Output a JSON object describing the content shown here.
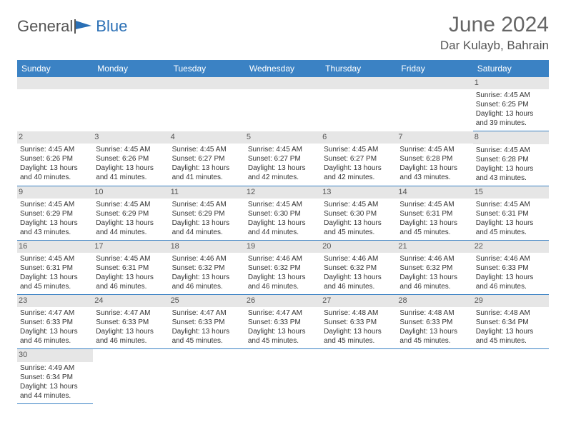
{
  "logo": {
    "general": "General",
    "blue": "Blue"
  },
  "title": "June 2024",
  "location": "Dar Kulayb, Bahrain",
  "colors": {
    "header_bg": "#3b82c4",
    "header_fg": "#ffffff",
    "daynum_bg": "#e6e6e6",
    "border": "#3b82c4",
    "logo_blue": "#2a6fb5",
    "text": "#333333"
  },
  "weekdays": [
    "Sunday",
    "Monday",
    "Tuesday",
    "Wednesday",
    "Thursday",
    "Friday",
    "Saturday"
  ],
  "weeks": [
    [
      null,
      null,
      null,
      null,
      null,
      null,
      {
        "n": "1",
        "sr": "4:45 AM",
        "ss": "6:25 PM",
        "dl": "13 hours and 39 minutes."
      }
    ],
    [
      {
        "n": "2",
        "sr": "4:45 AM",
        "ss": "6:26 PM",
        "dl": "13 hours and 40 minutes."
      },
      {
        "n": "3",
        "sr": "4:45 AM",
        "ss": "6:26 PM",
        "dl": "13 hours and 41 minutes."
      },
      {
        "n": "4",
        "sr": "4:45 AM",
        "ss": "6:27 PM",
        "dl": "13 hours and 41 minutes."
      },
      {
        "n": "5",
        "sr": "4:45 AM",
        "ss": "6:27 PM",
        "dl": "13 hours and 42 minutes."
      },
      {
        "n": "6",
        "sr": "4:45 AM",
        "ss": "6:27 PM",
        "dl": "13 hours and 42 minutes."
      },
      {
        "n": "7",
        "sr": "4:45 AM",
        "ss": "6:28 PM",
        "dl": "13 hours and 43 minutes."
      },
      {
        "n": "8",
        "sr": "4:45 AM",
        "ss": "6:28 PM",
        "dl": "13 hours and 43 minutes."
      }
    ],
    [
      {
        "n": "9",
        "sr": "4:45 AM",
        "ss": "6:29 PM",
        "dl": "13 hours and 43 minutes."
      },
      {
        "n": "10",
        "sr": "4:45 AM",
        "ss": "6:29 PM",
        "dl": "13 hours and 44 minutes."
      },
      {
        "n": "11",
        "sr": "4:45 AM",
        "ss": "6:29 PM",
        "dl": "13 hours and 44 minutes."
      },
      {
        "n": "12",
        "sr": "4:45 AM",
        "ss": "6:30 PM",
        "dl": "13 hours and 44 minutes."
      },
      {
        "n": "13",
        "sr": "4:45 AM",
        "ss": "6:30 PM",
        "dl": "13 hours and 45 minutes."
      },
      {
        "n": "14",
        "sr": "4:45 AM",
        "ss": "6:31 PM",
        "dl": "13 hours and 45 minutes."
      },
      {
        "n": "15",
        "sr": "4:45 AM",
        "ss": "6:31 PM",
        "dl": "13 hours and 45 minutes."
      }
    ],
    [
      {
        "n": "16",
        "sr": "4:45 AM",
        "ss": "6:31 PM",
        "dl": "13 hours and 45 minutes."
      },
      {
        "n": "17",
        "sr": "4:45 AM",
        "ss": "6:31 PM",
        "dl": "13 hours and 46 minutes."
      },
      {
        "n": "18",
        "sr": "4:46 AM",
        "ss": "6:32 PM",
        "dl": "13 hours and 46 minutes."
      },
      {
        "n": "19",
        "sr": "4:46 AM",
        "ss": "6:32 PM",
        "dl": "13 hours and 46 minutes."
      },
      {
        "n": "20",
        "sr": "4:46 AM",
        "ss": "6:32 PM",
        "dl": "13 hours and 46 minutes."
      },
      {
        "n": "21",
        "sr": "4:46 AM",
        "ss": "6:32 PM",
        "dl": "13 hours and 46 minutes."
      },
      {
        "n": "22",
        "sr": "4:46 AM",
        "ss": "6:33 PM",
        "dl": "13 hours and 46 minutes."
      }
    ],
    [
      {
        "n": "23",
        "sr": "4:47 AM",
        "ss": "6:33 PM",
        "dl": "13 hours and 46 minutes."
      },
      {
        "n": "24",
        "sr": "4:47 AM",
        "ss": "6:33 PM",
        "dl": "13 hours and 46 minutes."
      },
      {
        "n": "25",
        "sr": "4:47 AM",
        "ss": "6:33 PM",
        "dl": "13 hours and 45 minutes."
      },
      {
        "n": "26",
        "sr": "4:47 AM",
        "ss": "6:33 PM",
        "dl": "13 hours and 45 minutes."
      },
      {
        "n": "27",
        "sr": "4:48 AM",
        "ss": "6:33 PM",
        "dl": "13 hours and 45 minutes."
      },
      {
        "n": "28",
        "sr": "4:48 AM",
        "ss": "6:33 PM",
        "dl": "13 hours and 45 minutes."
      },
      {
        "n": "29",
        "sr": "4:48 AM",
        "ss": "6:34 PM",
        "dl": "13 hours and 45 minutes."
      }
    ],
    [
      {
        "n": "30",
        "sr": "4:49 AM",
        "ss": "6:34 PM",
        "dl": "13 hours and 44 minutes."
      },
      null,
      null,
      null,
      null,
      null,
      null
    ]
  ],
  "labels": {
    "sunrise": "Sunrise:",
    "sunset": "Sunset:",
    "daylight": "Daylight:"
  }
}
